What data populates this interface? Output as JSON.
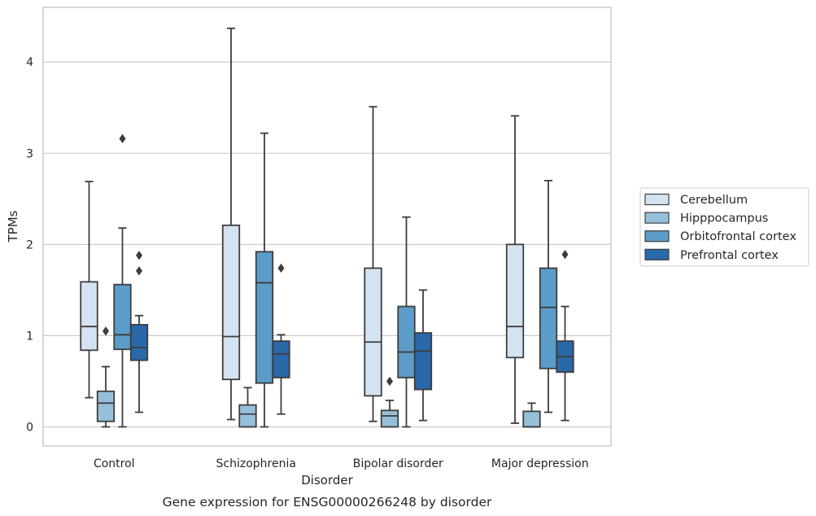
{
  "chart_data": {
    "type": "boxplot",
    "caption": "Gene expression for ENSG00000266248 by disorder",
    "xlabel": "Disorder",
    "ylabel": "TPMs",
    "ylim": [
      -0.21,
      4.6
    ],
    "yticks": [
      0,
      1,
      2,
      3,
      4
    ],
    "grid": "horizontal",
    "legend_position": "right",
    "categories": [
      "Control",
      "Schizophrenia",
      "Bipolar disorder",
      "Major depression"
    ],
    "series": [
      {
        "name": "Cerebellum",
        "color": "#d4e3f2",
        "boxes": [
          {
            "whislo": 0.32,
            "q1": 0.84,
            "med": 1.1,
            "q3": 1.59,
            "whishi": 2.69,
            "fliers": []
          },
          {
            "whislo": 0.08,
            "q1": 0.52,
            "med": 0.99,
            "q3": 2.21,
            "whishi": 4.37,
            "fliers": []
          },
          {
            "whislo": 0.06,
            "q1": 0.34,
            "med": 0.93,
            "q3": 1.74,
            "whishi": 3.51,
            "fliers": []
          },
          {
            "whislo": 0.04,
            "q1": 0.76,
            "med": 1.1,
            "q3": 2.0,
            "whishi": 3.41,
            "fliers": []
          }
        ]
      },
      {
        "name": "Hipppocampus",
        "color": "#96c0da",
        "boxes": [
          {
            "whislo": 0.0,
            "q1": 0.06,
            "med": 0.26,
            "q3": 0.39,
            "whishi": 0.66,
            "fliers": [
              1.05
            ]
          },
          {
            "whislo": 0.0,
            "q1": 0.0,
            "med": 0.14,
            "q3": 0.24,
            "whishi": 0.43,
            "fliers": []
          },
          {
            "whislo": 0.0,
            "q1": 0.0,
            "med": 0.12,
            "q3": 0.18,
            "whishi": 0.29,
            "fliers": [
              0.5
            ]
          },
          {
            "whislo": 0.0,
            "q1": 0.0,
            "med": 0.0,
            "q3": 0.17,
            "whishi": 0.26,
            "fliers": []
          }
        ]
      },
      {
        "name": "Orbitofrontal cortex",
        "color": "#5c9cc8",
        "boxes": [
          {
            "whislo": 0.0,
            "q1": 0.85,
            "med": 1.01,
            "q3": 1.56,
            "whishi": 2.18,
            "fliers": [
              3.16
            ]
          },
          {
            "whislo": 0.0,
            "q1": 0.48,
            "med": 1.58,
            "q3": 1.92,
            "whishi": 3.22,
            "fliers": []
          },
          {
            "whislo": 0.0,
            "q1": 0.54,
            "med": 0.82,
            "q3": 1.32,
            "whishi": 2.3,
            "fliers": []
          },
          {
            "whislo": 0.16,
            "q1": 0.64,
            "med": 1.31,
            "q3": 1.74,
            "whishi": 2.7,
            "fliers": []
          }
        ]
      },
      {
        "name": "Prefrontal cortex",
        "color": "#2968a9",
        "boxes": [
          {
            "whislo": 0.16,
            "q1": 0.73,
            "med": 0.87,
            "q3": 1.12,
            "whishi": 1.22,
            "fliers": [
              1.71,
              1.88
            ]
          },
          {
            "whislo": 0.14,
            "q1": 0.54,
            "med": 0.8,
            "q3": 0.94,
            "whishi": 1.01,
            "fliers": [
              1.74
            ]
          },
          {
            "whislo": 0.07,
            "q1": 0.41,
            "med": 0.83,
            "q3": 1.03,
            "whishi": 1.5,
            "fliers": []
          },
          {
            "whislo": 0.07,
            "q1": 0.6,
            "med": 0.77,
            "q3": 0.94,
            "whishi": 1.32,
            "fliers": [
              1.89
            ]
          }
        ]
      }
    ]
  }
}
